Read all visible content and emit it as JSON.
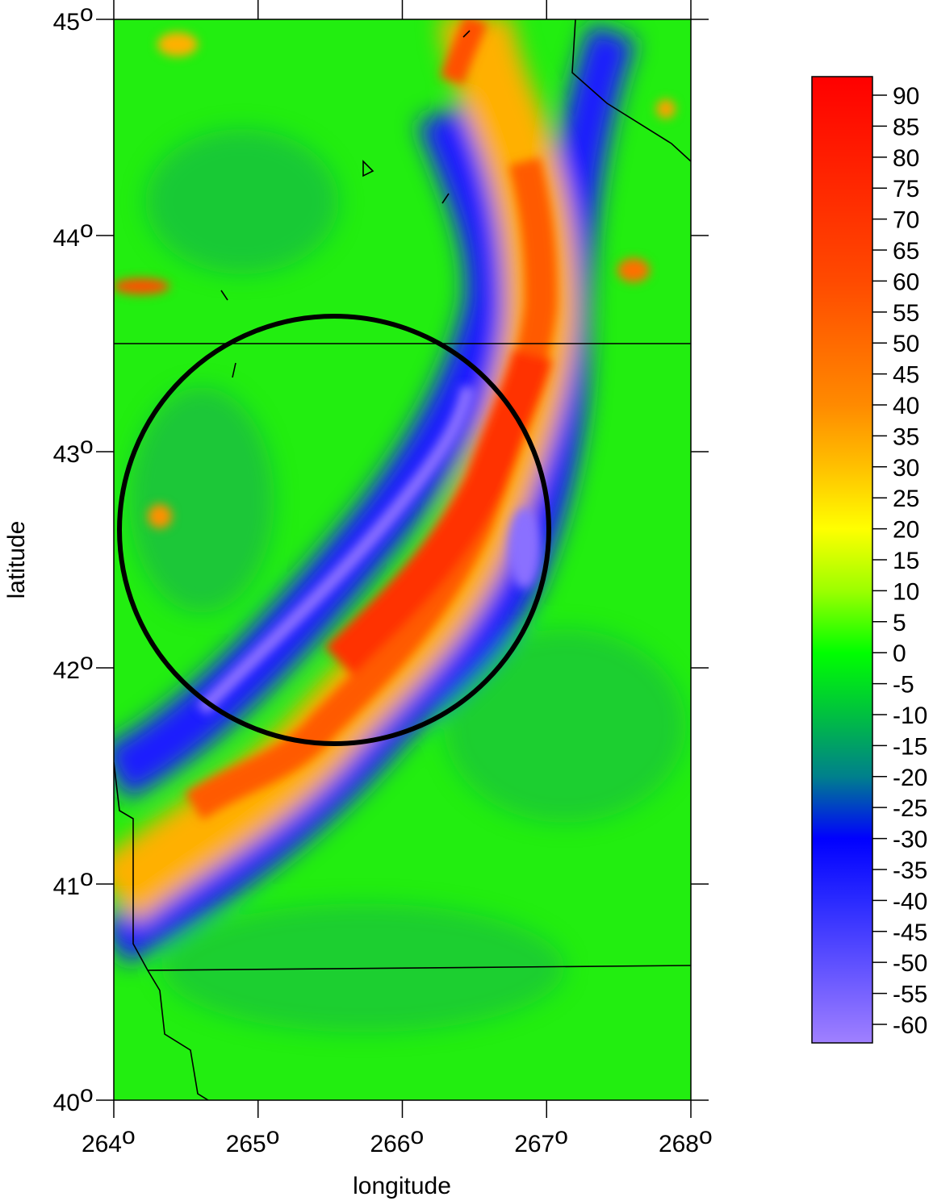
{
  "map": {
    "type": "heatmap",
    "xlabel": "longitude",
    "ylabel": "latitude",
    "xlim": [
      264,
      268
    ],
    "ylim": [
      40,
      45
    ],
    "x_ticks": [
      264,
      265,
      266,
      267,
      268
    ],
    "y_ticks": [
      40,
      41,
      42,
      43,
      44,
      45
    ],
    "x_tick_labels": [
      "264",
      "265",
      "266",
      "267",
      "268"
    ],
    "y_tick_labels": [
      "40",
      "41",
      "42",
      "43",
      "44",
      "45"
    ],
    "degree_symbol": "o",
    "colorbar": {
      "range": [
        -63,
        93
      ],
      "ticks": [
        90,
        85,
        80,
        75,
        70,
        65,
        60,
        55,
        50,
        45,
        40,
        35,
        30,
        25,
        20,
        15,
        10,
        5,
        0,
        -5,
        -10,
        -15,
        -20,
        -25,
        -30,
        -35,
        -40,
        -45,
        -50,
        -55,
        -60
      ],
      "colors": [
        {
          "value": 93,
          "color": "#ff0000"
        },
        {
          "value": 60,
          "color": "#ff4a00"
        },
        {
          "value": 40,
          "color": "#ff8a00"
        },
        {
          "value": 30,
          "color": "#ffc000"
        },
        {
          "value": 20,
          "color": "#ffff00"
        },
        {
          "value": 10,
          "color": "#9cff00"
        },
        {
          "value": 0,
          "color": "#00ff00"
        },
        {
          "value": -10,
          "color": "#00c040"
        },
        {
          "value": -20,
          "color": "#00808c"
        },
        {
          "value": -30,
          "color": "#0000ff"
        },
        {
          "value": -40,
          "color": "#2a2aff"
        },
        {
          "value": -63,
          "color": "#a080ff"
        }
      ]
    }
  }
}
